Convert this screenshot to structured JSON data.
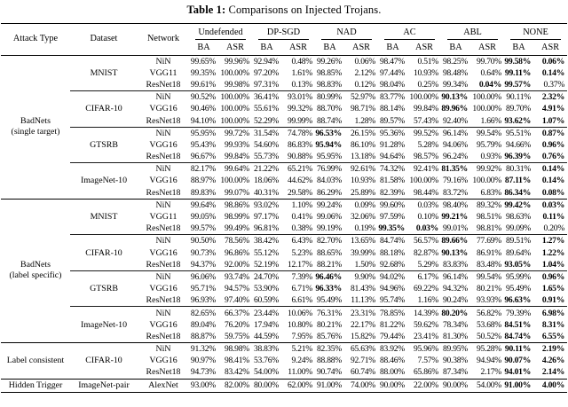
{
  "page": {
    "title_bold": "Table 1:",
    "title_rest": "Comparisons on Injected Trojans."
  },
  "table": {
    "static_headers": [
      "Attack Type",
      "Dataset",
      "Network"
    ],
    "method_groups": [
      "Undefended",
      "DP-SGD",
      "NAD",
      "AC",
      "ABL",
      "NONE"
    ],
    "metric_headers": [
      "BA",
      "ASR"
    ],
    "blocks": [
      {
        "attack": "BadNets\n(single target)",
        "datasets": [
          {
            "name": "MNIST",
            "rows": [
              {
                "network": "NiN",
                "values": [
                  "99.65%",
                  "99.96%",
                  "92.94%",
                  "0.48%",
                  "99.26%",
                  "0.06%",
                  "98.47%",
                  "0.51%",
                  "98.25%",
                  "99.70%",
                  "99.58%",
                  "0.06%"
                ],
                "bold": [
                  10,
                  11
                ]
              },
              {
                "network": "VGG11",
                "values": [
                  "99.35%",
                  "100.00%",
                  "97.20%",
                  "1.61%",
                  "98.85%",
                  "2.12%",
                  "97.44%",
                  "10.93%",
                  "98.48%",
                  "0.64%",
                  "99.11%",
                  "0.14%"
                ],
                "bold": [
                  10,
                  11
                ]
              },
              {
                "network": "ResNet18",
                "values": [
                  "99.61%",
                  "99.98%",
                  "97.31%",
                  "0.13%",
                  "98.83%",
                  "0.12%",
                  "98.04%",
                  "0.25%",
                  "99.34%",
                  "0.04%",
                  "99.57%",
                  "0.37%"
                ],
                "bold": [
                  9,
                  10
                ]
              }
            ]
          },
          {
            "name": "CIFAR-10",
            "rows": [
              {
                "network": "NiN",
                "values": [
                  "90.52%",
                  "100.00%",
                  "36.41%",
                  "93.01%",
                  "80.99%",
                  "52.97%",
                  "83.77%",
                  "100.00%",
                  "90.13%",
                  "100.00%",
                  "90.11%",
                  "2.32%"
                ],
                "bold": [
                  8,
                  11
                ]
              },
              {
                "network": "VGG16",
                "values": [
                  "90.46%",
                  "100.00%",
                  "55.61%",
                  "99.32%",
                  "88.70%",
                  "98.71%",
                  "88.14%",
                  "99.84%",
                  "89.96%",
                  "100.00%",
                  "89.70%",
                  "4.91%"
                ],
                "bold": [
                  8,
                  11
                ]
              },
              {
                "network": "ResNet18",
                "values": [
                  "94.10%",
                  "100.00%",
                  "52.29%",
                  "99.99%",
                  "88.74%",
                  "1.28%",
                  "89.57%",
                  "57.43%",
                  "92.40%",
                  "1.66%",
                  "93.62%",
                  "1.07%"
                ],
                "bold": [
                  10,
                  11
                ]
              }
            ]
          },
          {
            "name": "GTSRB",
            "rows": [
              {
                "network": "NiN",
                "values": [
                  "95.95%",
                  "99.72%",
                  "31.54%",
                  "74.78%",
                  "96.53%",
                  "26.15%",
                  "95.36%",
                  "99.52%",
                  "96.14%",
                  "99.54%",
                  "95.51%",
                  "0.87%"
                ],
                "bold": [
                  4,
                  11
                ]
              },
              {
                "network": "VGG16",
                "values": [
                  "95.43%",
                  "99.93%",
                  "54.60%",
                  "86.83%",
                  "95.94%",
                  "86.10%",
                  "91.28%",
                  "5.28%",
                  "94.06%",
                  "95.79%",
                  "94.66%",
                  "0.96%"
                ],
                "bold": [
                  4,
                  11
                ]
              },
              {
                "network": "ResNet18",
                "values": [
                  "96.67%",
                  "99.84%",
                  "55.73%",
                  "90.88%",
                  "95.95%",
                  "13.18%",
                  "94.64%",
                  "98.57%",
                  "96.24%",
                  "0.93%",
                  "96.39%",
                  "0.76%"
                ],
                "bold": [
                  10,
                  11
                ]
              }
            ]
          },
          {
            "name": "ImageNet-10",
            "rows": [
              {
                "network": "NiN",
                "values": [
                  "82.17%",
                  "99.64%",
                  "21.22%",
                  "65.21%",
                  "76.99%",
                  "92.61%",
                  "74.32%",
                  "92.41%",
                  "81.35%",
                  "99.92%",
                  "80.31%",
                  "0.14%"
                ],
                "bold": [
                  8,
                  11
                ]
              },
              {
                "network": "VGG16",
                "values": [
                  "88.97%",
                  "100.00%",
                  "18.06%",
                  "44.62%",
                  "84.03%",
                  "10.93%",
                  "81.58%",
                  "100.00%",
                  "79.16%",
                  "100.00%",
                  "87.11%",
                  "0.14%"
                ],
                "bold": [
                  10,
                  11
                ]
              },
              {
                "network": "ResNet18",
                "values": [
                  "89.83%",
                  "99.07%",
                  "40.31%",
                  "29.58%",
                  "86.29%",
                  "25.89%",
                  "82.39%",
                  "98.44%",
                  "83.72%",
                  "6.83%",
                  "86.34%",
                  "0.08%"
                ],
                "bold": [
                  10,
                  11
                ]
              }
            ]
          }
        ]
      },
      {
        "attack": "BadNets\n(label specific)",
        "datasets": [
          {
            "name": "MNIST",
            "rows": [
              {
                "network": "NiN",
                "values": [
                  "99.64%",
                  "98.86%",
                  "93.02%",
                  "1.10%",
                  "99.24%",
                  "0.09%",
                  "99.60%",
                  "0.03%",
                  "98.40%",
                  "89.32%",
                  "99.42%",
                  "0.03%"
                ],
                "bold": [
                  10,
                  11
                ]
              },
              {
                "network": "VGG11",
                "values": [
                  "99.05%",
                  "98.99%",
                  "97.17%",
                  "0.41%",
                  "99.06%",
                  "32.06%",
                  "97.59%",
                  "0.10%",
                  "99.21%",
                  "98.51%",
                  "98.63%",
                  "0.11%"
                ],
                "bold": [
                  8,
                  11
                ]
              },
              {
                "network": "ResNet18",
                "values": [
                  "99.57%",
                  "99.49%",
                  "96.81%",
                  "0.38%",
                  "99.19%",
                  "0.19%",
                  "99.35%",
                  "0.03%",
                  "99.01%",
                  "98.81%",
                  "99.09%",
                  "0.20%"
                ],
                "bold": [
                  6,
                  7
                ]
              }
            ]
          },
          {
            "name": "CIFAR-10",
            "rows": [
              {
                "network": "NiN",
                "values": [
                  "90.50%",
                  "78.56%",
                  "38.42%",
                  "6.43%",
                  "82.70%",
                  "13.65%",
                  "84.74%",
                  "56.57%",
                  "89.66%",
                  "77.69%",
                  "89.51%",
                  "1.27%"
                ],
                "bold": [
                  8,
                  11
                ]
              },
              {
                "network": "VGG16",
                "values": [
                  "90.73%",
                  "96.86%",
                  "55.12%",
                  "5.23%",
                  "88.65%",
                  "39.99%",
                  "88.18%",
                  "82.87%",
                  "90.13%",
                  "86.91%",
                  "89.64%",
                  "1.22%"
                ],
                "bold": [
                  8,
                  11
                ]
              },
              {
                "network": "ResNet18",
                "values": [
                  "94.37%",
                  "92.00%",
                  "52.19%",
                  "12.17%",
                  "88.21%",
                  "1.50%",
                  "92.68%",
                  "5.29%",
                  "83.83%",
                  "83.48%",
                  "93.05%",
                  "1.04%"
                ],
                "bold": [
                  10,
                  11
                ]
              }
            ]
          },
          {
            "name": "GTSRB",
            "rows": [
              {
                "network": "NiN",
                "values": [
                  "96.06%",
                  "93.74%",
                  "24.70%",
                  "7.39%",
                  "96.46%",
                  "9.90%",
                  "94.02%",
                  "6.17%",
                  "96.14%",
                  "99.54%",
                  "95.99%",
                  "0.96%"
                ],
                "bold": [
                  4,
                  11
                ]
              },
              {
                "network": "VGG16",
                "values": [
                  "95.71%",
                  "94.57%",
                  "53.90%",
                  "6.71%",
                  "96.33%",
                  "81.43%",
                  "94.96%",
                  "69.22%",
                  "94.32%",
                  "80.21%",
                  "95.49%",
                  "1.65%"
                ],
                "bold": [
                  4,
                  11
                ]
              },
              {
                "network": "ResNet18",
                "values": [
                  "96.93%",
                  "97.40%",
                  "60.59%",
                  "6.61%",
                  "95.49%",
                  "11.13%",
                  "95.74%",
                  "1.16%",
                  "90.24%",
                  "93.93%",
                  "96.63%",
                  "0.91%"
                ],
                "bold": [
                  10,
                  11
                ]
              }
            ]
          },
          {
            "name": "ImageNet-10",
            "rows": [
              {
                "network": "NiN",
                "values": [
                  "82.65%",
                  "66.37%",
                  "23.44%",
                  "10.06%",
                  "76.31%",
                  "23.31%",
                  "78.85%",
                  "14.39%",
                  "80.20%",
                  "56.82%",
                  "79.39%",
                  "6.98%"
                ],
                "bold": [
                  8,
                  11
                ]
              },
              {
                "network": "VGG16",
                "values": [
                  "89.04%",
                  "76.20%",
                  "17.94%",
                  "10.80%",
                  "80.21%",
                  "22.17%",
                  "81.22%",
                  "59.62%",
                  "78.34%",
                  "53.68%",
                  "84.51%",
                  "8.31%"
                ],
                "bold": [
                  10,
                  11
                ]
              },
              {
                "network": "ResNet18",
                "values": [
                  "88.87%",
                  "59.75%",
                  "44.59%",
                  "7.95%",
                  "85.76%",
                  "15.82%",
                  "79.44%",
                  "23.41%",
                  "81.30%",
                  "50.52%",
                  "84.74%",
                  "6.55%"
                ],
                "bold": [
                  10,
                  11
                ]
              }
            ]
          }
        ]
      },
      {
        "attack": "Label consistent",
        "datasets": [
          {
            "name": "CIFAR-10",
            "rows": [
              {
                "network": "NiN",
                "values": [
                  "91.32%",
                  "98.98%",
                  "38.83%",
                  "5.21%",
                  "82.35%",
                  "65.63%",
                  "83.92%",
                  "95.96%",
                  "89.95%",
                  "95.28%",
                  "90.11%",
                  "2.19%"
                ],
                "bold": [
                  10,
                  11
                ]
              },
              {
                "network": "VGG16",
                "values": [
                  "90.97%",
                  "98.41%",
                  "53.76%",
                  "9.24%",
                  "88.88%",
                  "92.71%",
                  "88.46%",
                  "7.57%",
                  "90.38%",
                  "94.94%",
                  "90.07%",
                  "4.26%"
                ],
                "bold": [
                  10,
                  11
                ]
              },
              {
                "network": "ResNet18",
                "values": [
                  "94.73%",
                  "83.42%",
                  "54.00%",
                  "11.00%",
                  "90.74%",
                  "60.74%",
                  "88.00%",
                  "65.86%",
                  "87.34%",
                  "2.17%",
                  "94.01%",
                  "2.14%"
                ],
                "bold": [
                  10,
                  11
                ]
              }
            ]
          }
        ]
      },
      {
        "attack": "Hidden Trigger",
        "datasets": [
          {
            "name": "ImageNet-pair",
            "rows": [
              {
                "network": "AlexNet",
                "values": [
                  "93.00%",
                  "82.00%",
                  "80.00%",
                  "62.00%",
                  "91.00%",
                  "74.00%",
                  "90.00%",
                  "22.00%",
                  "90.00%",
                  "54.00%",
                  "91.00%",
                  "4.00%"
                ],
                "bold": [
                  10,
                  11
                ]
              }
            ]
          }
        ]
      }
    ]
  }
}
